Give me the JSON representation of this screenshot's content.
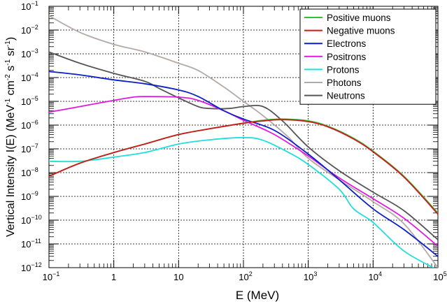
{
  "chart_data": {
    "type": "line",
    "title": "",
    "xlabel": "E (MeV)",
    "ylabel": "Vertical Intensity I(E) (MeV⁻¹ cm⁻² s⁻¹ sr⁻¹)",
    "xscale": "log",
    "yscale": "log",
    "xlim": [
      0.1,
      100000
    ],
    "ylim": [
      1e-12,
      0.1
    ],
    "grid": true,
    "legend_position": "top-right",
    "x_ticks": [
      {
        "value": 0.1,
        "base": "10",
        "exp": "−1"
      },
      {
        "value": 1,
        "base": "1",
        "exp": ""
      },
      {
        "value": 10,
        "base": "10",
        "exp": ""
      },
      {
        "value": 100,
        "base": "10",
        "exp": "2"
      },
      {
        "value": 1000,
        "base": "10",
        "exp": "3"
      },
      {
        "value": 10000,
        "base": "10",
        "exp": "4"
      },
      {
        "value": 100000,
        "base": "10",
        "exp": "5"
      }
    ],
    "y_ticks": [
      {
        "value": 1e-12,
        "base": "10",
        "exp": "−12"
      },
      {
        "value": 1e-11,
        "base": "10",
        "exp": "−11"
      },
      {
        "value": 1e-10,
        "base": "10",
        "exp": "−10"
      },
      {
        "value": 1e-09,
        "base": "10",
        "exp": "−9"
      },
      {
        "value": 1e-08,
        "base": "10",
        "exp": "−8"
      },
      {
        "value": 1e-07,
        "base": "10",
        "exp": "−7"
      },
      {
        "value": 1e-06,
        "base": "10",
        "exp": "−6"
      },
      {
        "value": 1e-05,
        "base": "10",
        "exp": "−5"
      },
      {
        "value": 0.0001,
        "base": "10",
        "exp": "−4"
      },
      {
        "value": 0.001,
        "base": "10",
        "exp": "−3"
      },
      {
        "value": 0.01,
        "base": "10",
        "exp": "−2"
      },
      {
        "value": 0.1,
        "base": "10",
        "exp": "−1"
      }
    ],
    "series": [
      {
        "name": "Positive muons",
        "color": "#2ec52e",
        "points": [
          [
            0.1,
            7e-09
          ],
          [
            0.3,
            2.5e-08
          ],
          [
            1,
            7e-08
          ],
          [
            3,
            1.6e-07
          ],
          [
            10,
            4e-07
          ],
          [
            30,
            7e-07
          ],
          [
            100,
            1.2e-06
          ],
          [
            200,
            1.6e-06
          ],
          [
            400,
            1.8e-06
          ],
          [
            1000,
            1.5e-06
          ],
          [
            2000,
            9e-07
          ],
          [
            5000,
            2.8e-07
          ],
          [
            10000,
            8e-08
          ],
          [
            30000,
            7e-09
          ],
          [
            100000,
            2e-10
          ]
        ]
      },
      {
        "name": "Negative muons",
        "color": "#cc1a1a",
        "points": [
          [
            0.1,
            7e-09
          ],
          [
            0.3,
            2.5e-08
          ],
          [
            1,
            7e-08
          ],
          [
            3,
            1.6e-07
          ],
          [
            10,
            4e-07
          ],
          [
            30,
            7e-07
          ],
          [
            100,
            1.2e-06
          ],
          [
            200,
            1.5e-06
          ],
          [
            400,
            1.7e-06
          ],
          [
            1000,
            1.4e-06
          ],
          [
            2000,
            8.5e-07
          ],
          [
            5000,
            2.6e-07
          ],
          [
            10000,
            7.5e-08
          ],
          [
            30000,
            6.5e-09
          ],
          [
            100000,
            1.8e-10
          ]
        ]
      },
      {
        "name": "Electrons",
        "color": "#0b1fc7",
        "points": [
          [
            0.1,
            0.00018
          ],
          [
            0.3,
            0.00013
          ],
          [
            1,
            8e-05
          ],
          [
            3,
            5.5e-05
          ],
          [
            10,
            3e-05
          ],
          [
            20,
            1.6e-05
          ],
          [
            50,
            4e-06
          ],
          [
            100,
            1.8e-06
          ],
          [
            300,
            6e-07
          ],
          [
            1000,
            6e-08
          ],
          [
            3000,
            5e-09
          ],
          [
            10000,
            3e-10
          ],
          [
            30000,
            4e-11
          ],
          [
            100000,
            3e-12
          ]
        ]
      },
      {
        "name": "Positrons",
        "color": "#e018e0",
        "points": [
          [
            0.1,
            3.5e-06
          ],
          [
            0.3,
            6e-06
          ],
          [
            1,
            1.1e-05
          ],
          [
            2,
            1.5e-05
          ],
          [
            3,
            1.6e-05
          ],
          [
            10,
            1.5e-05
          ],
          [
            20,
            1.1e-05
          ],
          [
            50,
            4e-06
          ],
          [
            100,
            1.6e-06
          ],
          [
            300,
            4e-07
          ],
          [
            1000,
            5e-08
          ],
          [
            3000,
            6e-09
          ],
          [
            10000,
            8e-10
          ],
          [
            30000,
            1.2e-10
          ],
          [
            100000,
            8e-12
          ]
        ]
      },
      {
        "name": "Protons",
        "color": "#22dede",
        "points": [
          [
            0.1,
            3e-08
          ],
          [
            0.3,
            3e-08
          ],
          [
            1,
            4.5e-08
          ],
          [
            3,
            7e-08
          ],
          [
            10,
            1.6e-07
          ],
          [
            30,
            2.4e-07
          ],
          [
            100,
            3e-07
          ],
          [
            200,
            2.3e-07
          ],
          [
            500,
            7e-08
          ],
          [
            1000,
            2.2e-08
          ],
          [
            3000,
            2e-09
          ],
          [
            5000,
            3e-10
          ],
          [
            10000,
            8e-11
          ],
          [
            30000,
            5e-12
          ],
          [
            100000,
            8e-13
          ]
        ]
      },
      {
        "name": "Photons",
        "color": "#b4aaa5",
        "points": [
          [
            0.1,
            0.04
          ],
          [
            0.3,
            0.008
          ],
          [
            1,
            0.0025
          ],
          [
            3,
            0.0012
          ],
          [
            10,
            0.0004
          ],
          [
            20,
            0.0002
          ],
          [
            50,
            4e-05
          ],
          [
            100,
            1e-05
          ],
          [
            200,
            2.5e-06
          ],
          [
            500,
            3e-07
          ],
          [
            1000,
            4e-08
          ],
          [
            3000,
            5e-09
          ],
          [
            10000,
            6e-10
          ],
          [
            30000,
            7e-11
          ],
          [
            100000,
            1e-12
          ]
        ]
      },
      {
        "name": "Neutrons",
        "color": "#555555",
        "points": [
          [
            0.1,
            0.0012
          ],
          [
            0.3,
            0.0004
          ],
          [
            1,
            0.00015
          ],
          [
            3,
            7e-05
          ],
          [
            5,
            3.5e-05
          ],
          [
            10,
            1.4e-05
          ],
          [
            20,
            6e-06
          ],
          [
            30,
            5e-06
          ],
          [
            60,
            5e-06
          ],
          [
            100,
            6e-06
          ],
          [
            200,
            6e-06
          ],
          [
            400,
            1.5e-06
          ],
          [
            1000,
            1.2e-07
          ],
          [
            3000,
            1.2e-08
          ],
          [
            10000,
            1.5e-09
          ],
          [
            30000,
            2.5e-10
          ],
          [
            100000,
            1.5e-11
          ]
        ]
      }
    ]
  }
}
